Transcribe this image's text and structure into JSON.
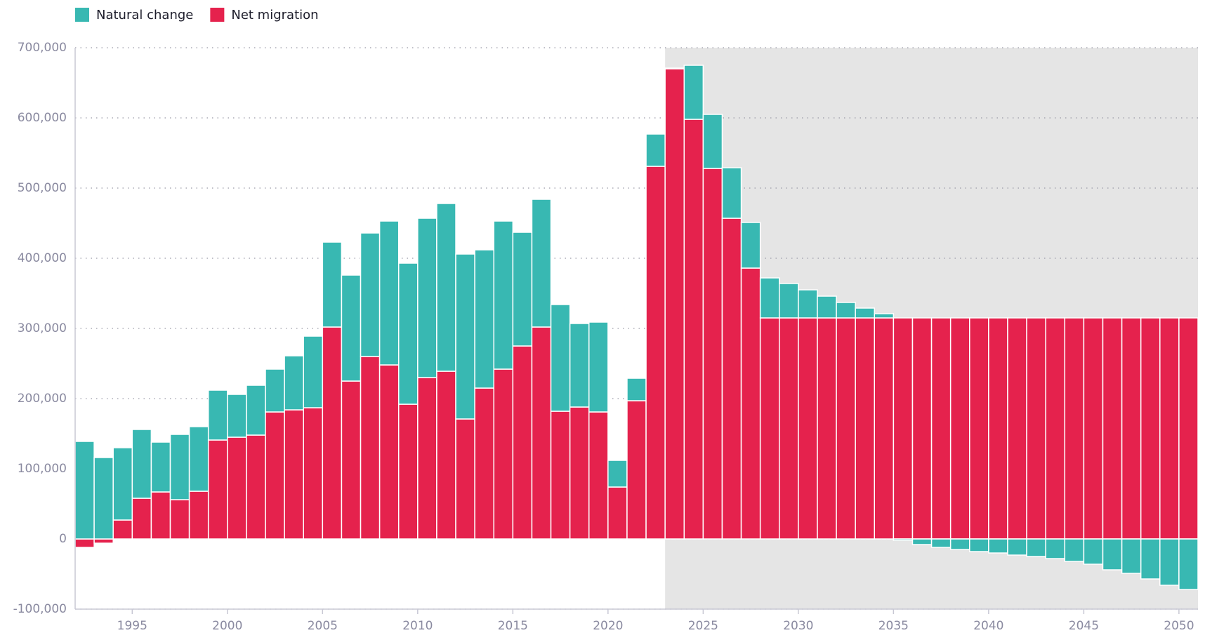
{
  "chart_data": {
    "type": "stacked_bar",
    "x": [
      1992,
      1993,
      1994,
      1995,
      1996,
      1997,
      1998,
      1999,
      2000,
      2001,
      2002,
      2003,
      2004,
      2005,
      2006,
      2007,
      2008,
      2009,
      2010,
      2011,
      2012,
      2013,
      2014,
      2015,
      2016,
      2017,
      2018,
      2019,
      2020,
      2021,
      2022,
      2023,
      2024,
      2025,
      2026,
      2027,
      2028,
      2029,
      2030,
      2031,
      2032,
      2033,
      2034,
      2035,
      2036,
      2037,
      2038,
      2039,
      2040,
      2041,
      2042,
      2043,
      2044,
      2045,
      2046,
      2047,
      2048,
      2049,
      2050
    ],
    "series": [
      {
        "name": "Natural change",
        "color": "#38b8b2",
        "values": [
          139000,
          116000,
          103000,
          98000,
          71000,
          93000,
          92000,
          71000,
          61000,
          71000,
          61000,
          77000,
          102000,
          121000,
          151000,
          176000,
          205000,
          201000,
          227000,
          239000,
          235000,
          197000,
          211000,
          162000,
          182000,
          152000,
          119000,
          128000,
          38000,
          32000,
          46000,
          1000,
          77000,
          77000,
          72000,
          65000,
          57000,
          49000,
          40000,
          31000,
          22000,
          14000,
          6000,
          -2000,
          -8000,
          -12000,
          -15000,
          -18000,
          -20000,
          -23000,
          -25000,
          -28000,
          -32000,
          -36000,
          -44000,
          -49000,
          -57000,
          -66000,
          -72000
        ]
      },
      {
        "name": "Net migration",
        "color": "#e5224d",
        "values": [
          -12000,
          -6000,
          27000,
          58000,
          67000,
          56000,
          68000,
          141000,
          145000,
          148000,
          181000,
          184000,
          187000,
          302000,
          225000,
          260000,
          248000,
          192000,
          230000,
          239000,
          171000,
          215000,
          242000,
          275000,
          302000,
          182000,
          188000,
          181000,
          74000,
          197000,
          531000,
          670000,
          598000,
          528000,
          457000,
          386000,
          315000,
          315000,
          315000,
          315000,
          315000,
          315000,
          315000,
          315000,
          315000,
          315000,
          315000,
          315000,
          315000,
          315000,
          315000,
          315000,
          315000,
          315000,
          315000,
          315000,
          315000,
          315000,
          315000
        ]
      }
    ],
    "xlim": [
      1992,
      2051
    ],
    "xticks": [
      1995,
      2000,
      2005,
      2010,
      2015,
      2020,
      2025,
      2030,
      2035,
      2040,
      2045,
      2050
    ],
    "ylim": [
      -100000,
      700000
    ],
    "yticks": [
      {
        "value": -100000,
        "label": "-100,000"
      },
      0,
      {
        "value": 100000,
        "label": "100,000"
      },
      {
        "value": 200000,
        "label": "200,000"
      },
      {
        "value": 300000,
        "label": "300,000"
      },
      {
        "value": 400000,
        "label": "400,000"
      },
      {
        "value": 500000,
        "label": "500,000"
      },
      {
        "value": 600000,
        "label": "600,000"
      },
      {
        "value": 700000,
        "label": "700,000"
      }
    ],
    "shade_xlim": [
      2023,
      2051
    ],
    "grid": true
  }
}
